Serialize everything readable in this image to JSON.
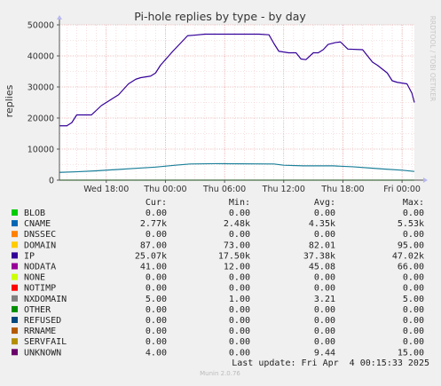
{
  "chart_data": {
    "type": "line",
    "title": "Pi-hole replies by type - by day",
    "ylabel": "replies",
    "watermark": "RRDTOOL / TOBI OETIKER",
    "ylim": [
      0,
      50000
    ],
    "yticks": [
      {
        "value": 0,
        "label": "0"
      },
      {
        "value": 10000,
        "label": "10000"
      },
      {
        "value": 20000,
        "label": "20000"
      },
      {
        "value": 30000,
        "label": "30000"
      },
      {
        "value": 40000,
        "label": "40000"
      },
      {
        "value": 50000,
        "label": "50000"
      }
    ],
    "xlim": [
      "Wed 13:15",
      "Fri 01:15"
    ],
    "xticks": [
      {
        "label": "Wed 18:00",
        "time": "Wed 18:00"
      },
      {
        "label": "Thu 00:00",
        "time": "Thu 00:00"
      },
      {
        "label": "Thu 06:00",
        "time": "Thu 06:00"
      },
      {
        "label": "Thu 12:00",
        "time": "Thu 12:00"
      },
      {
        "label": "Thu 18:00",
        "time": "Thu 18:00"
      },
      {
        "label": "Fri 00:00",
        "time": "Fri 00:00"
      }
    ],
    "grid": true,
    "series": [
      {
        "name": "IP",
        "color": "#330099",
        "points": [
          [
            "Wed 13:15",
            17500
          ],
          [
            "Wed 14:00",
            17500
          ],
          [
            "Wed 14:30",
            18500
          ],
          [
            "Wed 15:00",
            21000
          ],
          [
            "Wed 16:00",
            21000
          ],
          [
            "Wed 16:30",
            21000
          ],
          [
            "Wed 17:30",
            24000
          ],
          [
            "Wed 18:30",
            26000
          ],
          [
            "Wed 19:15",
            27500
          ],
          [
            "Wed 20:15",
            31000
          ],
          [
            "Wed 21:00",
            32500
          ],
          [
            "Wed 21:30",
            33000
          ],
          [
            "Wed 22:30",
            33500
          ],
          [
            "Wed 23:00",
            34500
          ],
          [
            "Wed 23:30",
            37000
          ],
          [
            "Thu 00:45",
            41500
          ],
          [
            "Thu 01:30",
            44000
          ],
          [
            "Thu 02:15",
            46500
          ],
          [
            "Thu 03:00",
            46700
          ],
          [
            "Thu 04:00",
            47000
          ],
          [
            "Thu 09:30",
            47000
          ],
          [
            "Thu 10:30",
            46800
          ],
          [
            "Thu 11:00",
            44000
          ],
          [
            "Thu 11:30",
            41500
          ],
          [
            "Thu 12:30",
            41000
          ],
          [
            "Thu 13:15",
            41000
          ],
          [
            "Thu 13:45",
            39000
          ],
          [
            "Thu 14:15",
            38800
          ],
          [
            "Thu 15:00",
            41000
          ],
          [
            "Thu 15:30",
            41000
          ],
          [
            "Thu 16:00",
            42000
          ],
          [
            "Thu 16:30",
            43700
          ],
          [
            "Thu 17:15",
            44300
          ],
          [
            "Thu 17:45",
            44500
          ],
          [
            "Thu 18:30",
            42200
          ],
          [
            "Thu 20:00",
            42000
          ],
          [
            "Thu 20:30",
            40000
          ],
          [
            "Thu 21:00",
            38000
          ],
          [
            "Thu 21:30",
            37000
          ],
          [
            "Thu 22:30",
            34500
          ],
          [
            "Thu 23:00",
            32000
          ],
          [
            "Thu 23:30",
            31500
          ],
          [
            "Fri 00:30",
            31000
          ],
          [
            "Fri 01:00",
            28000
          ],
          [
            "Fri 01:15",
            25000
          ]
        ]
      },
      {
        "name": "CNAME",
        "color": "#1a7f99",
        "points": [
          [
            "Wed 13:15",
            2500
          ],
          [
            "Wed 15:00",
            2700
          ],
          [
            "Wed 17:00",
            3000
          ],
          [
            "Wed 19:00",
            3400
          ],
          [
            "Wed 21:00",
            3800
          ],
          [
            "Wed 23:00",
            4200
          ],
          [
            "Thu 01:00",
            4800
          ],
          [
            "Thu 02:30",
            5200
          ],
          [
            "Thu 05:00",
            5300
          ],
          [
            "Thu 11:00",
            5200
          ],
          [
            "Thu 12:00",
            4800
          ],
          [
            "Thu 14:00",
            4600
          ],
          [
            "Thu 17:00",
            4600
          ],
          [
            "Thu 19:00",
            4300
          ],
          [
            "Thu 22:00",
            3600
          ],
          [
            "Fri 00:00",
            3200
          ],
          [
            "Fri 01:15",
            2800
          ]
        ]
      },
      {
        "name": "BLOB",
        "color": "#00cc00",
        "points": [
          [
            "Wed 13:15",
            0
          ],
          [
            "Fri 01:15",
            0
          ]
        ]
      }
    ],
    "columns": {
      "cur": "Cur:",
      "min": "Min:",
      "avg": "Avg:",
      "max": "Max:"
    },
    "legend": [
      {
        "name": "BLOB",
        "color": "#00cc00",
        "cur": "0.00",
        "min": "0.00",
        "avg": "0.00",
        "max": "0.00"
      },
      {
        "name": "CNAME",
        "color": "#0066b3",
        "cur": "2.77k",
        "min": "2.48k",
        "avg": "4.35k",
        "max": "5.53k"
      },
      {
        "name": "DNSSEC",
        "color": "#ff8000",
        "cur": "0.00",
        "min": "0.00",
        "avg": "0.00",
        "max": "0.00"
      },
      {
        "name": "DOMAIN",
        "color": "#ffcc00",
        "cur": "87.00",
        "min": "73.00",
        "avg": "82.01",
        "max": "95.00"
      },
      {
        "name": "IP",
        "color": "#330099",
        "cur": "25.07k",
        "min": "17.50k",
        "avg": "37.38k",
        "max": "47.02k"
      },
      {
        "name": "NODATA",
        "color": "#990099",
        "cur": "41.00",
        "min": "12.00",
        "avg": "45.08",
        "max": "66.00"
      },
      {
        "name": "NONE",
        "color": "#ccff00",
        "cur": "0.00",
        "min": "0.00",
        "avg": "0.00",
        "max": "0.00"
      },
      {
        "name": "NOTIMP",
        "color": "#ff0000",
        "cur": "0.00",
        "min": "0.00",
        "avg": "0.00",
        "max": "0.00"
      },
      {
        "name": "NXDOMAIN",
        "color": "#808080",
        "cur": "5.00",
        "min": "1.00",
        "avg": "3.21",
        "max": "5.00"
      },
      {
        "name": "OTHER",
        "color": "#008f00",
        "cur": "0.00",
        "min": "0.00",
        "avg": "0.00",
        "max": "0.00"
      },
      {
        "name": "REFUSED",
        "color": "#00487d",
        "cur": "0.00",
        "min": "0.00",
        "avg": "0.00",
        "max": "0.00"
      },
      {
        "name": "RRNAME",
        "color": "#b35a00",
        "cur": "0.00",
        "min": "0.00",
        "avg": "0.00",
        "max": "0.00"
      },
      {
        "name": "SERVFAIL",
        "color": "#b38f00",
        "cur": "0.00",
        "min": "0.00",
        "avg": "0.00",
        "max": "0.00"
      },
      {
        "name": "UNKNOWN",
        "color": "#6b006b",
        "cur": "4.00",
        "min": "0.00",
        "avg": "9.44",
        "max": "15.00"
      }
    ],
    "last_update": "Last update: Fri Apr  4 00:15:33 2025",
    "footer": "Munin 2.0.76"
  }
}
